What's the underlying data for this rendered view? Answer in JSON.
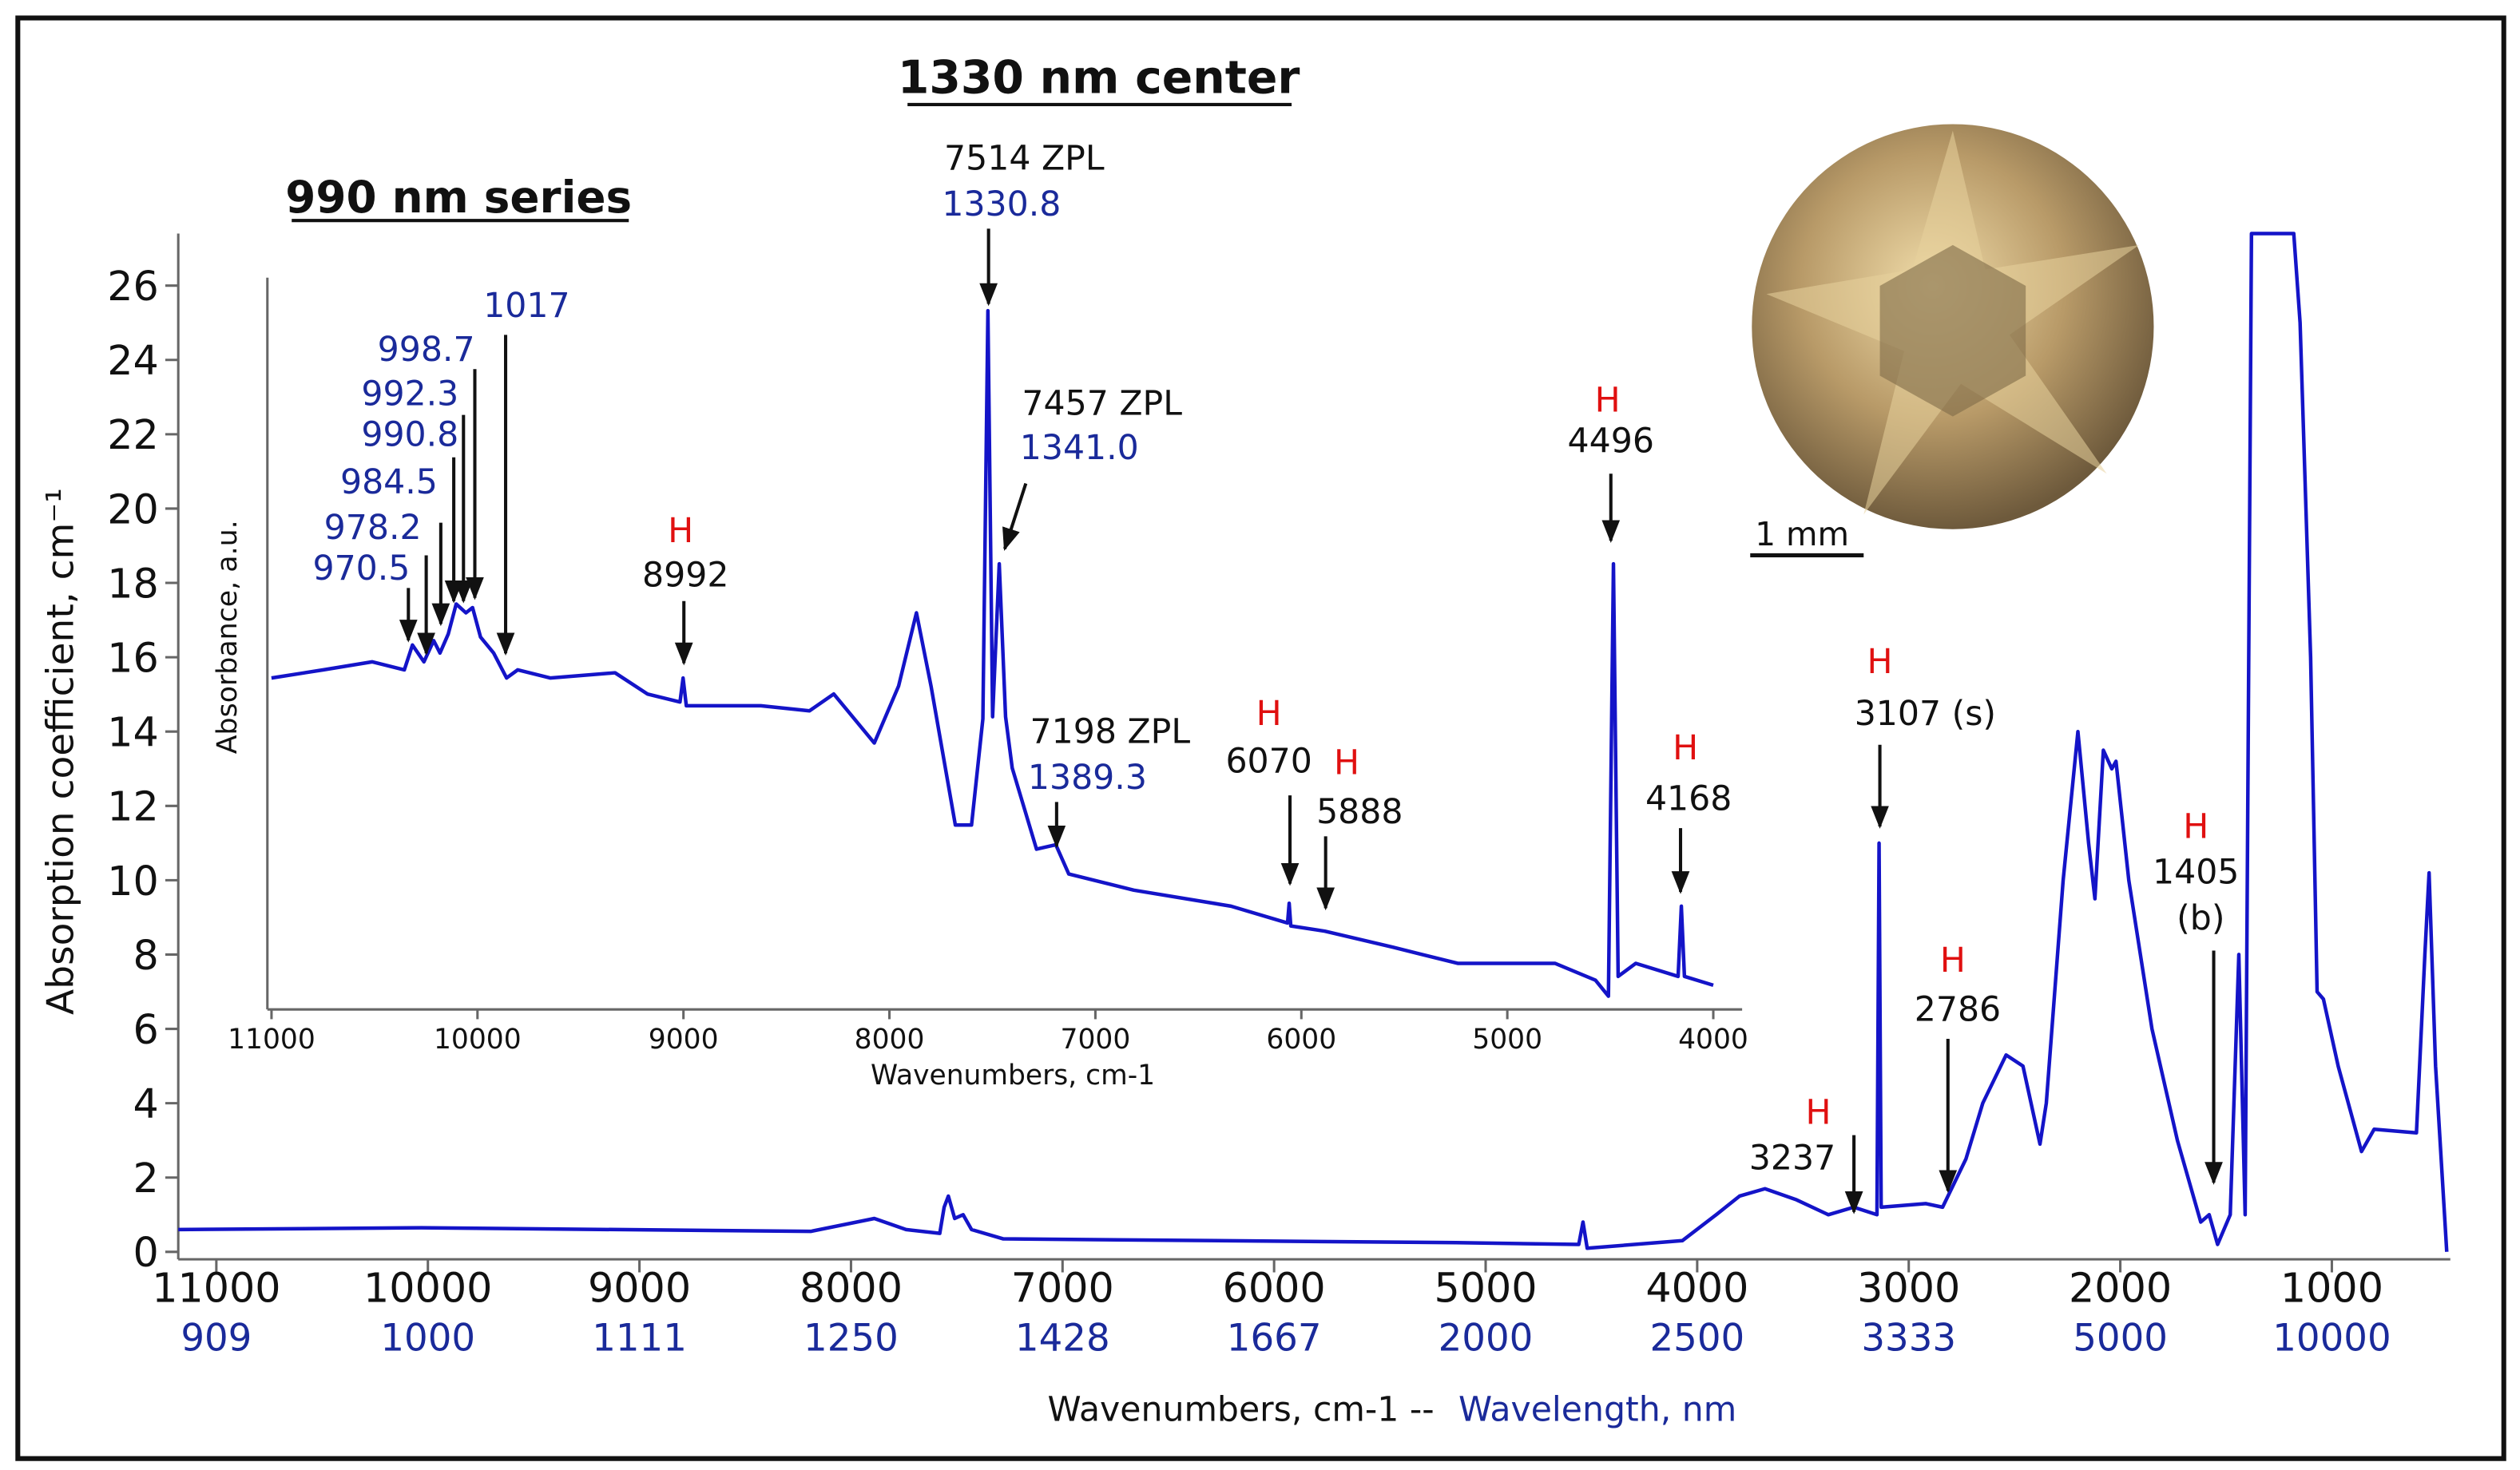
{
  "title": "1330 nm center",
  "scale_bar": "1 mm",
  "chart_data": [
    {
      "type": "line",
      "ylabel": "Absorption coefficient, cm⁻¹",
      "xlabel": "Wavenumbers, cm-1 --",
      "x2label": "Wavelength, nm",
      "color": "#1414c8",
      "x2color": "#1a2a9a",
      "xlim": [
        11180,
        440
      ],
      "ylim": [
        -0.2,
        27.4
      ],
      "xticks": [
        11000,
        10000,
        9000,
        8000,
        7000,
        6000,
        5000,
        4000,
        3000,
        2000,
        1000
      ],
      "x2ticks": [
        909,
        1000,
        1111,
        1250,
        1428,
        1667,
        2000,
        2500,
        3333,
        5000,
        10000
      ],
      "yticks": [
        0,
        2,
        4,
        6,
        8,
        10,
        12,
        14,
        16,
        18,
        20,
        22,
        24,
        26
      ],
      "x": [
        11180,
        10030,
        8190,
        7890,
        7740,
        7580,
        7560,
        7540,
        7510,
        7470,
        7430,
        7280,
        5140,
        4560,
        4540,
        4520,
        4070,
        3910,
        3800,
        3680,
        3530,
        3380,
        3260,
        3150,
        3140,
        3130,
        2920,
        2840,
        2730,
        2650,
        2540,
        2460,
        2380,
        2350,
        2270,
        2200,
        2150,
        2120,
        2080,
        2040,
        2020,
        1960,
        1850,
        1730,
        1620,
        1580,
        1540,
        1480,
        1440,
        1410,
        1380,
        1180,
        1150,
        1100,
        1070,
        1040,
        970,
        860,
        800,
        600,
        560,
        540,
        510,
        457
      ],
      "values": [
        0.6,
        0.65,
        0.55,
        0.9,
        0.6,
        0.5,
        1.2,
        1.5,
        0.9,
        1.0,
        0.6,
        0.35,
        0.25,
        0.2,
        0.8,
        0.1,
        0.3,
        1.0,
        1.5,
        1.7,
        1.4,
        1.0,
        1.2,
        1.0,
        11,
        1.2,
        1.3,
        1.2,
        2.5,
        4,
        5.3,
        5.0,
        2.9,
        4,
        10,
        14,
        11,
        9.5,
        13.5,
        13,
        13.2,
        10,
        6,
        3,
        0.8,
        1.0,
        0.2,
        1.0,
        8,
        1,
        27.4,
        27.4,
        25,
        16,
        7,
        6.8,
        5,
        2.7,
        3.3,
        3.2,
        8,
        10.2,
        5,
        0
      ],
      "annotations": [
        {
          "lines": [
            "H",
            "3237"
          ],
          "colors": [
            "#e01010",
            "#111111"
          ]
        },
        {
          "lines": [
            "H",
            "3107 (s)"
          ],
          "colors": [
            "#e01010",
            "#111111"
          ]
        },
        {
          "lines": [
            "H",
            "2786"
          ],
          "colors": [
            "#e01010",
            "#111111"
          ]
        },
        {
          "lines": [
            "H",
            "1405",
            "(b)"
          ],
          "colors": [
            "#e01010",
            "#111111",
            "#111111"
          ]
        }
      ]
    },
    {
      "type": "line",
      "title": "990 nm series",
      "ylabel": "Absorbance, a.u.",
      "xlabel": "Wavenumbers, cm-1",
      "color": "#1414c8",
      "xlim": [
        11020,
        3860
      ],
      "ylim": [
        0,
        100
      ],
      "xticks": [
        11000,
        10000,
        9000,
        8000,
        7000,
        6000,
        5000,
        4000
      ],
      "x": [
        11000,
        10748,
        10512,
        10355,
        10316,
        10260,
        10213,
        10182,
        10142,
        10103,
        10056,
        10024,
        9985,
        9922,
        9859,
        9804,
        9647,
        9332,
        9175,
        9017,
        9002,
        8986,
        8624,
        8388,
        8270,
        8073,
        7955,
        7869,
        7798,
        7680,
        7601,
        7546,
        7522,
        7499,
        7467,
        7436,
        7404,
        7286,
        7192,
        7129,
        6814,
        6342,
        6067,
        6059,
        6051,
        5886,
        5556,
        5241,
        4769,
        4572,
        4509,
        4485,
        4462,
        4376,
        4171,
        4155,
        4140,
        4000
      ],
      "values": [
        45.3,
        46.4,
        47.5,
        46.4,
        49.8,
        47.5,
        50.4,
        48.7,
        51.3,
        55.4,
        54.2,
        54.9,
        50.9,
        48.7,
        45.3,
        46.4,
        45.3,
        46.0,
        43.1,
        42.0,
        45.3,
        41.5,
        41.5,
        40.8,
        43.1,
        36.4,
        44.2,
        54.2,
        44.2,
        25.2,
        25.2,
        39.7,
        95.5,
        40,
        60.9,
        40,
        33.0,
        21.9,
        22.5,
        18.5,
        16.3,
        14.1,
        11.8,
        14.5,
        11.4,
        10.7,
        8.5,
        6.3,
        6.3,
        4.0,
        1.8,
        60.9,
        4.5,
        6.3,
        4.5,
        14.1,
        4.5,
        3.3
      ],
      "annotations": [
        {
          "lines": [
            "7514 ZPL",
            "1330.8"
          ],
          "colors": [
            "#111111",
            "#1a2a9a"
          ]
        },
        {
          "lines": [
            "7457 ZPL",
            "1341.0"
          ],
          "colors": [
            "#111111",
            "#1a2a9a"
          ]
        },
        {
          "lines": [
            "7198 ZPL",
            "1389.3"
          ],
          "colors": [
            "#111111",
            "#1a2a9a"
          ]
        },
        {
          "lines": [
            "H",
            "8992"
          ],
          "colors": [
            "#e01010",
            "#111111"
          ]
        },
        {
          "lines": [
            "H",
            "6070"
          ],
          "colors": [
            "#e01010",
            "#111111"
          ]
        },
        {
          "lines": [
            "H",
            "5888"
          ],
          "colors": [
            "#e01010",
            "#111111"
          ]
        },
        {
          "lines": [
            "H",
            "4496"
          ],
          "colors": [
            "#e01010",
            "#111111"
          ]
        },
        {
          "lines": [
            "H",
            "4168"
          ],
          "colors": [
            "#e01010",
            "#111111"
          ]
        },
        {
          "lines": [
            "1017"
          ],
          "colors": [
            "#1a2a9a"
          ]
        },
        {
          "lines": [
            "998.7"
          ],
          "colors": [
            "#1a2a9a"
          ]
        },
        {
          "lines": [
            "992.3"
          ],
          "colors": [
            "#1a2a9a"
          ]
        },
        {
          "lines": [
            "990.8"
          ],
          "colors": [
            "#1a2a9a"
          ]
        },
        {
          "lines": [
            "984.5"
          ],
          "colors": [
            "#1a2a9a"
          ]
        },
        {
          "lines": [
            "978.2"
          ],
          "colors": [
            "#1a2a9a"
          ]
        },
        {
          "lines": [
            "970.5"
          ],
          "colors": [
            "#1a2a9a"
          ]
        }
      ]
    }
  ]
}
